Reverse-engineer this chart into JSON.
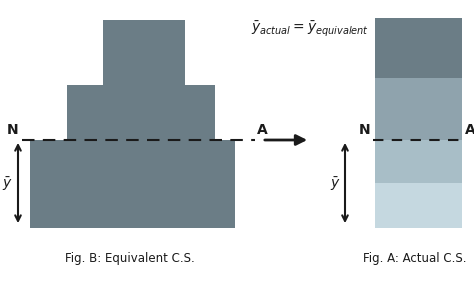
{
  "bg_color": "#ffffff",
  "gray_shape": "#6b7d86",
  "band1_color": "#6b7d86",
  "band2_color": "#8fa3ad",
  "band3_color": "#a8bec7",
  "band4_color": "#c5d8e0",
  "dashed_color": "#1a1a1a",
  "arrow_color": "#1a1a1a",
  "text_color": "#1a1a1a",
  "fig_b_label": "Fig. B: Equivalent C.S.",
  "fig_a_label": "Fig. A: Actual C.S.",
  "ybar_label": "$\\bar{y}$",
  "title_text": "$\\bar{y}_{actual} = \\bar{y}_{equivalent}$",
  "N_label": "N",
  "A_label": "A"
}
